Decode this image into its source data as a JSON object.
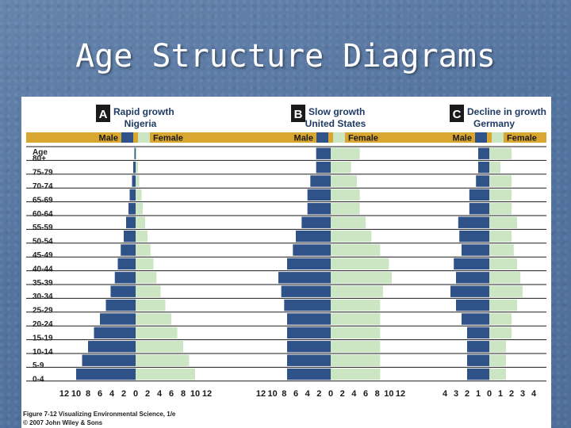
{
  "slide": {
    "title": "Age Structure Diagrams"
  },
  "figure": {
    "caption_line1": "Figure 7-12 Visualizing Environmental Science, 1/e",
    "caption_line2": "© 2007 John Wiley & Sons",
    "colors": {
      "male": "#2f5288",
      "female": "#cce6c3",
      "header_band": "#d9a62f",
      "border": "#1f3a63"
    }
  },
  "chart_data": {
    "type": "bar",
    "age_label": "Age",
    "age_groups": [
      "80+",
      "75-79",
      "70-74",
      "65-69",
      "60-64",
      "55-59",
      "50-54",
      "45-49",
      "40-44",
      "35-39",
      "30-34",
      "25-29",
      "20-24",
      "15-19",
      "10-14",
      "5-9",
      "0-4"
    ],
    "panels": [
      {
        "letter": "A",
        "title": "Rapid growth",
        "country": "Nigeria",
        "male_label": "Male",
        "female_label": "Female",
        "xlim": [
          -12,
          12
        ],
        "x_ticks": [
          "12",
          "10",
          "8",
          "6",
          "4",
          "2",
          "0",
          "2",
          "4",
          "6",
          "8",
          "10",
          "12"
        ],
        "male": [
          0.2,
          0.4,
          0.6,
          1.0,
          1.2,
          1.6,
          2.0,
          2.5,
          3.0,
          3.5,
          4.2,
          5.0,
          6.0,
          7.0,
          8.0,
          9.0,
          10.0
        ],
        "female": [
          0.2,
          0.4,
          0.6,
          1.0,
          1.2,
          1.6,
          2.0,
          2.5,
          3.0,
          3.5,
          4.2,
          5.0,
          6.0,
          7.0,
          8.0,
          9.0,
          10.0
        ]
      },
      {
        "letter": "B",
        "title": "Slow growth",
        "country": "United States",
        "male_label": "Male",
        "female_label": "Female",
        "xlim": [
          -12,
          12
        ],
        "x_ticks": [
          "12",
          "10",
          "8",
          "6",
          "4",
          "2",
          "0",
          "2",
          "4",
          "6",
          "8",
          "10",
          "12"
        ],
        "male": [
          2.5,
          2.5,
          3.5,
          4.0,
          4.0,
          5.0,
          6.0,
          6.5,
          7.5,
          9.0,
          8.5,
          8.0,
          7.5,
          7.5,
          7.5,
          7.5,
          7.5
        ],
        "female": [
          5.0,
          3.5,
          4.5,
          5.0,
          5.0,
          6.0,
          7.0,
          8.5,
          10.0,
          10.5,
          9.0,
          8.5,
          8.5,
          8.5,
          8.5,
          8.5,
          8.5
        ]
      },
      {
        "letter": "C",
        "title": "Decline in growth",
        "country": "Germany",
        "male_label": "Male",
        "female_label": "Female",
        "xlim": [
          -4,
          4
        ],
        "x_ticks": [
          "4",
          "3",
          "2",
          "1",
          "0",
          "1",
          "2",
          "3",
          "4"
        ],
        "male": [
          1.0,
          1.0,
          1.2,
          1.8,
          1.8,
          2.8,
          2.7,
          2.5,
          3.2,
          3.0,
          3.5,
          3.0,
          2.5,
          2.0,
          2.0,
          2.0,
          2.0
        ],
        "female": [
          2.0,
          1.0,
          2.0,
          2.0,
          2.0,
          2.5,
          2.0,
          2.2,
          2.5,
          2.8,
          3.0,
          2.5,
          2.0,
          2.0,
          1.5,
          1.5,
          1.5
        ]
      }
    ]
  }
}
